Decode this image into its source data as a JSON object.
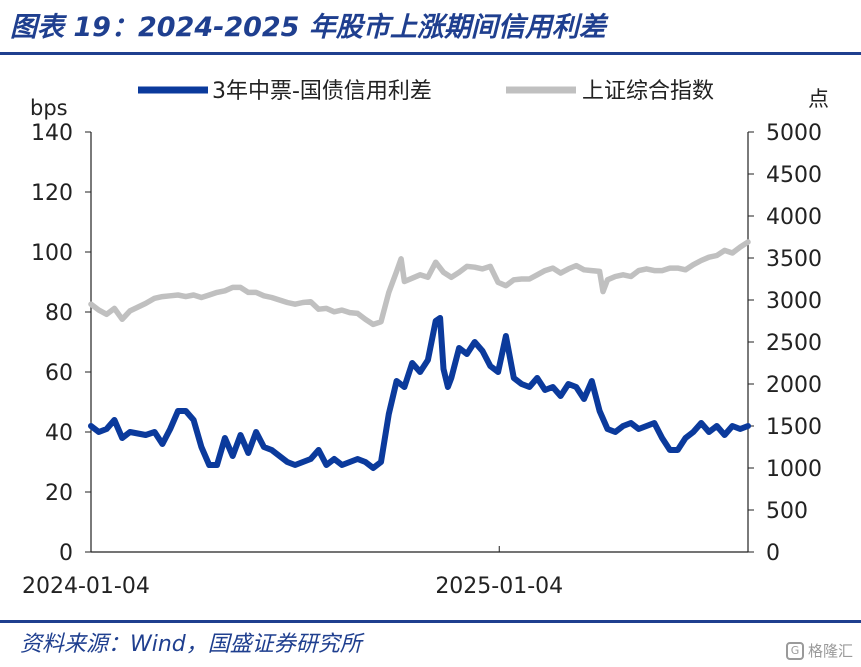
{
  "title": "图表 19：2024-2025 年股市上涨期间信用利差",
  "source": "资料来源：Wind，国盛证券研究所",
  "watermark": "格隆汇",
  "colors": {
    "spread": "#0b3a9c",
    "index": "#c0c0c0",
    "title": "#1f3f8f"
  },
  "chart_data": {
    "type": "line",
    "title": "",
    "legend": [
      "3年中票-国债信用利差",
      "上证综合指数"
    ],
    "legend_position": "top",
    "x_tick_labels": [
      "2024-01-04",
      "2025-01-04"
    ],
    "x_range": [
      "2024-01-04",
      "2025-08-15"
    ],
    "left_axis": {
      "label": "bps",
      "range": [
        0,
        140
      ],
      "ticks": [
        0,
        20,
        40,
        60,
        80,
        100,
        120,
        140
      ]
    },
    "right_axis": {
      "label": "点",
      "range": [
        0,
        5000
      ],
      "ticks": [
        0,
        500,
        1000,
        1500,
        2000,
        2500,
        3000,
        3500,
        4000,
        4500,
        5000
      ]
    },
    "grid": false,
    "series": [
      {
        "name": "3年中票-国债信用利差",
        "axis": "left",
        "points": [
          [
            "2024-01-04",
            42
          ],
          [
            "2024-01-11",
            40
          ],
          [
            "2024-01-18",
            41
          ],
          [
            "2024-01-25",
            44
          ],
          [
            "2024-02-01",
            38
          ],
          [
            "2024-02-08",
            40
          ],
          [
            "2024-02-22",
            39
          ],
          [
            "2024-03-01",
            40
          ],
          [
            "2024-03-08",
            36
          ],
          [
            "2024-03-15",
            41
          ],
          [
            "2024-03-22",
            47
          ],
          [
            "2024-03-29",
            47
          ],
          [
            "2024-04-05",
            44
          ],
          [
            "2024-04-12",
            35
          ],
          [
            "2024-04-19",
            29
          ],
          [
            "2024-04-26",
            29
          ],
          [
            "2024-05-03",
            38
          ],
          [
            "2024-05-10",
            32
          ],
          [
            "2024-05-17",
            39
          ],
          [
            "2024-05-24",
            33
          ],
          [
            "2024-05-31",
            40
          ],
          [
            "2024-06-07",
            35
          ],
          [
            "2024-06-14",
            34
          ],
          [
            "2024-06-21",
            32
          ],
          [
            "2024-06-28",
            30
          ],
          [
            "2024-07-05",
            29
          ],
          [
            "2024-07-12",
            30
          ],
          [
            "2024-07-19",
            31
          ],
          [
            "2024-07-26",
            34
          ],
          [
            "2024-08-02",
            29
          ],
          [
            "2024-08-09",
            31
          ],
          [
            "2024-08-16",
            29
          ],
          [
            "2024-08-23",
            30
          ],
          [
            "2024-08-30",
            31
          ],
          [
            "2024-09-06",
            30
          ],
          [
            "2024-09-13",
            28
          ],
          [
            "2024-09-20",
            30
          ],
          [
            "2024-09-27",
            46
          ],
          [
            "2024-10-04",
            57
          ],
          [
            "2024-10-11",
            55
          ],
          [
            "2024-10-18",
            63
          ],
          [
            "2024-10-25",
            60
          ],
          [
            "2024-11-01",
            64
          ],
          [
            "2024-11-08",
            77
          ],
          [
            "2024-11-12",
            78
          ],
          [
            "2024-11-15",
            61
          ],
          [
            "2024-11-19",
            55
          ],
          [
            "2024-11-22",
            58
          ],
          [
            "2024-11-29",
            68
          ],
          [
            "2024-12-06",
            66
          ],
          [
            "2024-12-13",
            70
          ],
          [
            "2024-12-20",
            67
          ],
          [
            "2024-12-27",
            62
          ],
          [
            "2025-01-03",
            60
          ],
          [
            "2025-01-10",
            72
          ],
          [
            "2025-01-17",
            58
          ],
          [
            "2025-01-24",
            56
          ],
          [
            "2025-01-31",
            55
          ],
          [
            "2025-02-07",
            58
          ],
          [
            "2025-02-14",
            54
          ],
          [
            "2025-02-21",
            55
          ],
          [
            "2025-02-28",
            52
          ],
          [
            "2025-03-07",
            56
          ],
          [
            "2025-03-14",
            55
          ],
          [
            "2025-03-21",
            51
          ],
          [
            "2025-03-28",
            57
          ],
          [
            "2025-04-04",
            47
          ],
          [
            "2025-04-11",
            41
          ],
          [
            "2025-04-18",
            40
          ],
          [
            "2025-04-25",
            42
          ],
          [
            "2025-05-02",
            43
          ],
          [
            "2025-05-09",
            41
          ],
          [
            "2025-05-16",
            42
          ],
          [
            "2025-05-23",
            43
          ],
          [
            "2025-05-30",
            38
          ],
          [
            "2025-06-06",
            34
          ],
          [
            "2025-06-13",
            34
          ],
          [
            "2025-06-20",
            38
          ],
          [
            "2025-06-27",
            40
          ],
          [
            "2025-07-04",
            43
          ],
          [
            "2025-07-11",
            40
          ],
          [
            "2025-07-18",
            42
          ],
          [
            "2025-07-25",
            39
          ],
          [
            "2025-08-01",
            42
          ],
          [
            "2025-08-08",
            41
          ],
          [
            "2025-08-15",
            42
          ]
        ]
      },
      {
        "name": "上证综合指数",
        "axis": "right",
        "points": [
          [
            "2024-01-04",
            2950
          ],
          [
            "2024-01-11",
            2880
          ],
          [
            "2024-01-18",
            2830
          ],
          [
            "2024-01-25",
            2900
          ],
          [
            "2024-02-01",
            2770
          ],
          [
            "2024-02-08",
            2870
          ],
          [
            "2024-02-22",
            2960
          ],
          [
            "2024-03-01",
            3020
          ],
          [
            "2024-03-08",
            3040
          ],
          [
            "2024-03-15",
            3050
          ],
          [
            "2024-03-22",
            3060
          ],
          [
            "2024-03-29",
            3040
          ],
          [
            "2024-04-05",
            3060
          ],
          [
            "2024-04-12",
            3030
          ],
          [
            "2024-04-19",
            3060
          ],
          [
            "2024-04-26",
            3090
          ],
          [
            "2024-05-03",
            3110
          ],
          [
            "2024-05-10",
            3150
          ],
          [
            "2024-05-17",
            3150
          ],
          [
            "2024-05-24",
            3090
          ],
          [
            "2024-05-31",
            3090
          ],
          [
            "2024-06-07",
            3050
          ],
          [
            "2024-06-14",
            3030
          ],
          [
            "2024-06-21",
            3000
          ],
          [
            "2024-06-28",
            2970
          ],
          [
            "2024-07-05",
            2950
          ],
          [
            "2024-07-12",
            2970
          ],
          [
            "2024-07-19",
            2980
          ],
          [
            "2024-07-26",
            2890
          ],
          [
            "2024-08-02",
            2900
          ],
          [
            "2024-08-09",
            2860
          ],
          [
            "2024-08-16",
            2880
          ],
          [
            "2024-08-23",
            2850
          ],
          [
            "2024-08-30",
            2840
          ],
          [
            "2024-09-06",
            2770
          ],
          [
            "2024-09-13",
            2710
          ],
          [
            "2024-09-20",
            2740
          ],
          [
            "2024-09-27",
            3090
          ],
          [
            "2024-10-04",
            3340
          ],
          [
            "2024-10-08",
            3490
          ],
          [
            "2024-10-11",
            3220
          ],
          [
            "2024-10-18",
            3260
          ],
          [
            "2024-10-25",
            3300
          ],
          [
            "2024-11-01",
            3270
          ],
          [
            "2024-11-08",
            3450
          ],
          [
            "2024-11-15",
            3330
          ],
          [
            "2024-11-22",
            3270
          ],
          [
            "2024-11-29",
            3330
          ],
          [
            "2024-12-06",
            3400
          ],
          [
            "2024-12-13",
            3390
          ],
          [
            "2024-12-20",
            3370
          ],
          [
            "2024-12-27",
            3400
          ],
          [
            "2025-01-03",
            3210
          ],
          [
            "2025-01-10",
            3170
          ],
          [
            "2025-01-17",
            3240
          ],
          [
            "2025-01-24",
            3250
          ],
          [
            "2025-01-31",
            3250
          ],
          [
            "2025-02-07",
            3300
          ],
          [
            "2025-02-14",
            3350
          ],
          [
            "2025-02-21",
            3380
          ],
          [
            "2025-02-28",
            3320
          ],
          [
            "2025-03-07",
            3370
          ],
          [
            "2025-03-14",
            3410
          ],
          [
            "2025-03-21",
            3360
          ],
          [
            "2025-03-28",
            3350
          ],
          [
            "2025-04-04",
            3340
          ],
          [
            "2025-04-07",
            3100
          ],
          [
            "2025-04-11",
            3240
          ],
          [
            "2025-04-18",
            3280
          ],
          [
            "2025-04-25",
            3300
          ],
          [
            "2025-05-02",
            3280
          ],
          [
            "2025-05-09",
            3350
          ],
          [
            "2025-05-16",
            3370
          ],
          [
            "2025-05-23",
            3350
          ],
          [
            "2025-05-30",
            3350
          ],
          [
            "2025-06-06",
            3380
          ],
          [
            "2025-06-13",
            3380
          ],
          [
            "2025-06-20",
            3360
          ],
          [
            "2025-06-27",
            3420
          ],
          [
            "2025-07-04",
            3470
          ],
          [
            "2025-07-11",
            3510
          ],
          [
            "2025-07-18",
            3530
          ],
          [
            "2025-07-25",
            3590
          ],
          [
            "2025-08-01",
            3560
          ],
          [
            "2025-08-08",
            3630
          ],
          [
            "2025-08-15",
            3690
          ]
        ]
      }
    ]
  }
}
